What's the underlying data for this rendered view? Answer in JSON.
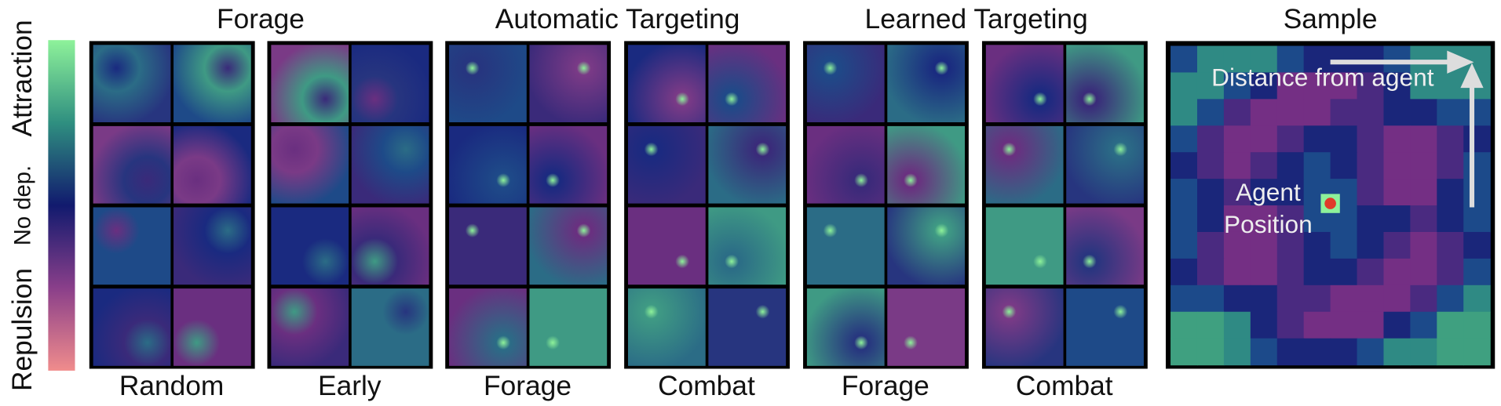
{
  "colorbar": {
    "labels": [
      "Attraction",
      "No dep.",
      "Repulsion"
    ]
  },
  "group_titles": [
    "Forage",
    "Automatic Targeting",
    "Learned Targeting"
  ],
  "panels": [
    {
      "label": "Random"
    },
    {
      "label": "Early"
    },
    {
      "label": "Forage"
    },
    {
      "label": "Combat"
    },
    {
      "label": "Forage"
    },
    {
      "label": "Combat"
    }
  ],
  "sample": {
    "title": "Sample",
    "arrow_label": "Distance from agent",
    "agent_label": [
      "Agent",
      "Position"
    ]
  }
}
